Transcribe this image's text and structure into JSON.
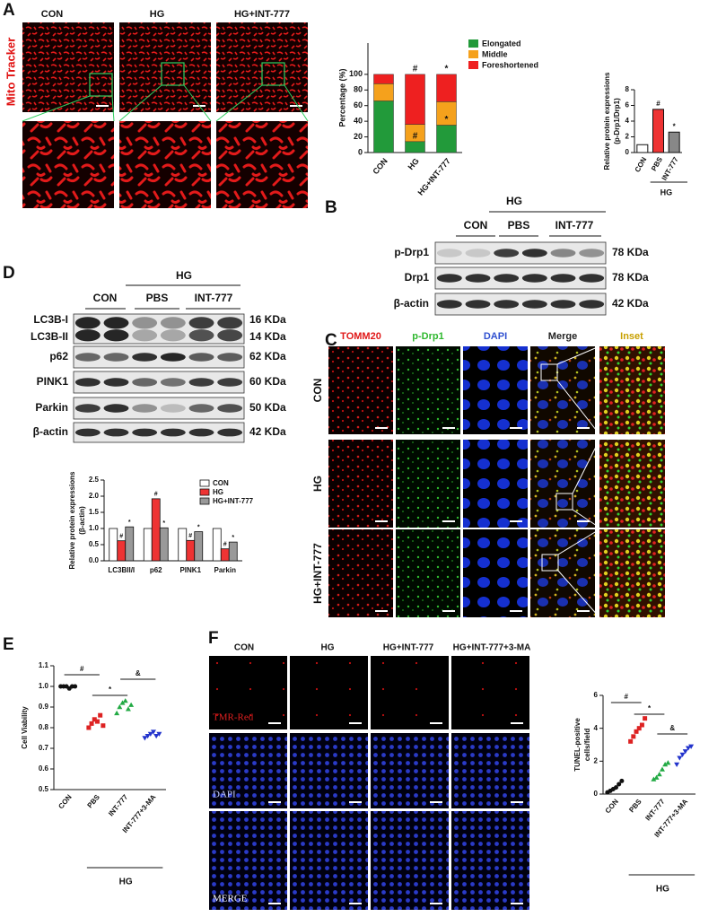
{
  "figure": {
    "panel_labels": [
      "A",
      "B",
      "C",
      "D",
      "E",
      "F"
    ],
    "A": {
      "stain": "Mito Tracker",
      "columns": [
        "CON",
        "HG",
        "HG+INT-777"
      ]
    },
    "B": {
      "group": "HG",
      "columns": [
        "CON",
        "PBS",
        "INT-777"
      ],
      "rows": [
        "p-Drp1",
        "Drp1",
        "β-actin"
      ],
      "sizes": [
        "78 KDa",
        "78 KDa",
        "42 KDa"
      ]
    },
    "C": {
      "columns": [
        "TOMM20",
        "p-Drp1",
        "DAPI",
        "Merge",
        "Inset"
      ],
      "rows": [
        "CON",
        "HG",
        "HG+INT-777"
      ]
    },
    "D": {
      "group": "HG",
      "columns": [
        "CON",
        "PBS",
        "INT-777"
      ],
      "rows": [
        "LC3B-I",
        "LC3B-II",
        "p62",
        "PINK1",
        "Parkin",
        "β-actin"
      ],
      "sizes": [
        "16 KDa",
        "14 KDa",
        "62 KDa",
        "60 KDa",
        "50 KDa",
        "42 KDa"
      ]
    },
    "F": {
      "columns": [
        "CON",
        "HG",
        "HG+INT-777",
        "HG+INT-777+3-MA"
      ],
      "rows": [
        "TMR-Red",
        "DAPI",
        "MERGE"
      ]
    }
  },
  "chart_data": [
    {
      "type": "stacked-bar",
      "ylabel": "Percentage (%)",
      "categories": [
        "CON",
        "HG",
        "HG+INT-777"
      ],
      "series": [
        {
          "name": "Elongated",
          "color": "#229a3a",
          "values": [
            66,
            14,
            35
          ]
        },
        {
          "name": "Middle",
          "color": "#f5a11c",
          "values": [
            22,
            22,
            30
          ]
        },
        {
          "name": "Foreshortened",
          "color": "#ee2020",
          "values": [
            12,
            64,
            35
          ]
        }
      ],
      "ylim": [
        0,
        140
      ],
      "yticks": [
        0,
        20,
        40,
        60,
        80,
        100
      ],
      "annotations": [
        "#",
        "#",
        "*",
        "*"
      ],
      "legend": "upper right"
    },
    {
      "type": "bar",
      "ylabel": [
        "Relative protein expressions",
        "(p-Drp1/Drp1)"
      ],
      "categories": [
        "CON",
        "PBS",
        "INT-777"
      ],
      "values": [
        1.0,
        5.5,
        2.6
      ],
      "colors": [
        "#ffffff",
        "#ee3333",
        "#888888"
      ],
      "ylim": [
        0,
        8
      ],
      "yticks": [
        0,
        2,
        4,
        6,
        8
      ],
      "group": "HG",
      "annotations": [
        "#",
        "*"
      ]
    },
    {
      "type": "grouped-bar",
      "ylabel": [
        "Relative protein expressions",
        "(β-actin)"
      ],
      "categories": [
        "LC3BII/I",
        "p62",
        "PINK1",
        "Parkin"
      ],
      "series": [
        {
          "name": "CON",
          "color": "#ffffff",
          "values": [
            1.0,
            1.0,
            1.0,
            1.0
          ]
        },
        {
          "name": "HG",
          "color": "#ee3333",
          "values": [
            0.62,
            1.92,
            0.63,
            0.37
          ]
        },
        {
          "name": "HG+INT-777",
          "color": "#999999",
          "values": [
            1.05,
            1.02,
            0.9,
            0.58
          ]
        }
      ],
      "ylim": [
        0,
        2.5
      ],
      "yticks": [
        {
          "value": 0,
          "label": "0.0"
        },
        0.5,
        {
          "value": 1,
          "label": "1.0"
        },
        1.5,
        {
          "value": 2,
          "label": "2.0"
        },
        2.5
      ],
      "annotations": [
        [
          "#",
          "*"
        ],
        [
          "#",
          "*"
        ],
        [
          "#",
          "*"
        ],
        [
          "#",
          "*"
        ]
      ],
      "legend": "upper right"
    },
    {
      "type": "strip",
      "ylabel": "Cell Viability",
      "categories": [
        "CON",
        "PBS",
        "INT-777",
        "INT-777+3-MA"
      ],
      "values": [
        [
          1.0,
          1.0,
          1.0,
          0.99,
          1.0,
          1.0
        ],
        [
          0.8,
          0.82,
          0.84,
          0.83,
          0.86,
          0.81
        ],
        [
          0.87,
          0.9,
          0.92,
          0.93,
          0.89,
          0.91
        ],
        [
          0.75,
          0.76,
          0.77,
          0.78,
          0.76,
          0.77
        ]
      ],
      "colors": [
        "#111111",
        "#dd2222",
        "#22aa44",
        "#2233cc"
      ],
      "markers": [
        "circle",
        "square",
        "triangle",
        "triangle-down"
      ],
      "ylim": [
        0.5,
        1.1
      ],
      "yticks": [
        0.5,
        0.6,
        0.7,
        0.8,
        0.9,
        {
          "value": 1,
          "label": "1.0"
        },
        1.1
      ],
      "group": "HG",
      "annotations": [
        "#",
        "*",
        "&"
      ]
    },
    {
      "type": "strip",
      "ylabel": [
        "TUNEL-positive",
        "cells/field"
      ],
      "categories": [
        "CON",
        "PBS",
        "INT-777",
        "INT-777+3-MA"
      ],
      "values": [
        [
          0.1,
          0.2,
          0.3,
          0.4,
          0.6,
          0.8
        ],
        [
          3.2,
          3.5,
          3.8,
          4.0,
          4.2,
          4.6
        ],
        [
          0.9,
          1.0,
          1.2,
          1.5,
          1.8,
          1.9
        ],
        [
          1.8,
          2.2,
          2.4,
          2.6,
          2.8,
          2.9
        ]
      ],
      "colors": [
        "#111111",
        "#dd2222",
        "#22aa44",
        "#2233cc"
      ],
      "markers": [
        "circle",
        "square",
        "triangle",
        "triangle-down"
      ],
      "ylim": [
        0,
        6
      ],
      "yticks": [
        0,
        2,
        4,
        6
      ],
      "group": "HG",
      "annotations": [
        "#",
        "*",
        "&"
      ]
    }
  ]
}
